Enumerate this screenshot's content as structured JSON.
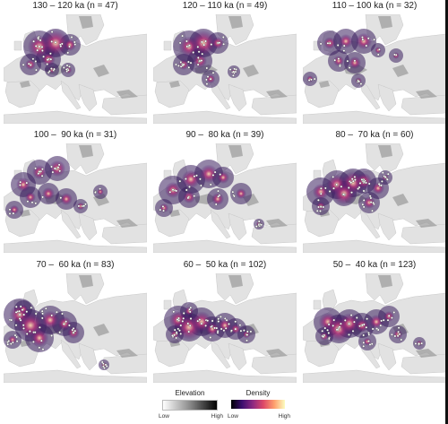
{
  "panels": [
    {
      "title": "130 – 120 ka (n = 47)"
    },
    {
      "title": "120 – 110 ka (n = 49)"
    },
    {
      "title": "110 – 100 ka (n = 32)"
    },
    {
      "title": "100 –  90 ka (n = 31)"
    },
    {
      "title": "90 –  80 ka (n = 39)"
    },
    {
      "title": "80 –  70 ka (n = 60)"
    },
    {
      "title": "70 –  60 ka (n = 83)"
    },
    {
      "title": "60 –  50 ka (n = 102)"
    },
    {
      "title": "50 –  40 ka (n = 123)"
    }
  ],
  "legend": {
    "elevation": {
      "title": "Elevation",
      "low": "Low",
      "high": "High"
    },
    "density": {
      "title": "Density",
      "low": "Low",
      "high": "High"
    }
  },
  "colors": {
    "sea": "#ffffff",
    "land_light": "#e2e2e2",
    "land_dark": "#9a9a9a",
    "density_low": "#3b0f6f",
    "density_mid": "#b5367a",
    "density_high": "#fcdcb0",
    "site_point": "#ffffff"
  }
}
